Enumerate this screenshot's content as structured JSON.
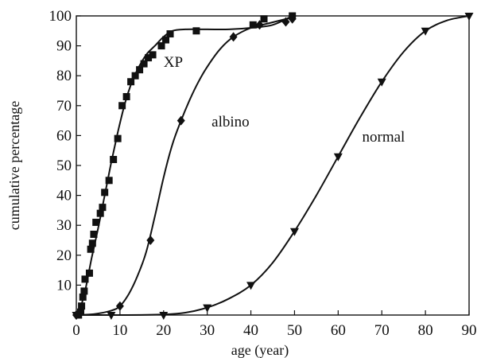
{
  "chart_data": {
    "type": "line",
    "xlabel": "age (year)",
    "ylabel": "cumulative percentage",
    "xlim": [
      0,
      90
    ],
    "ylim": [
      0,
      100
    ],
    "xticks": [
      0,
      10,
      20,
      30,
      40,
      50,
      60,
      70,
      80,
      90
    ],
    "yticks": [
      10,
      20,
      30,
      40,
      50,
      60,
      70,
      80,
      90,
      100
    ],
    "grid": false,
    "line_color": "#111111",
    "series": [
      {
        "name": "XP",
        "marker": "square",
        "points": [
          [
            0.5,
            0
          ],
          [
            1,
            1
          ],
          [
            1.2,
            3
          ],
          [
            1.5,
            6
          ],
          [
            1.8,
            8
          ],
          [
            2,
            12
          ],
          [
            3,
            14
          ],
          [
            3.3,
            22
          ],
          [
            3.7,
            24
          ],
          [
            4,
            27
          ],
          [
            4.5,
            31
          ],
          [
            5.5,
            34
          ],
          [
            6,
            36
          ],
          [
            6.5,
            41
          ],
          [
            7.5,
            45
          ],
          [
            8.5,
            52
          ],
          [
            9.5,
            59
          ],
          [
            10.5,
            70
          ],
          [
            11.5,
            73
          ],
          [
            12.5,
            78
          ],
          [
            13.5,
            80
          ],
          [
            14.5,
            82
          ],
          [
            15.5,
            84
          ],
          [
            16.5,
            86
          ],
          [
            17.5,
            87
          ],
          [
            19.5,
            90
          ],
          [
            20.5,
            92
          ],
          [
            21.5,
            94
          ],
          [
            27.5,
            95
          ],
          [
            40.5,
            97
          ],
          [
            43,
            99
          ],
          [
            49.5,
            100
          ]
        ],
        "curve": [
          [
            0.5,
            0
          ],
          [
            2,
            8
          ],
          [
            3.5,
            19
          ],
          [
            5,
            29
          ],
          [
            6.5,
            40
          ],
          [
            8,
            51
          ],
          [
            9.5,
            61
          ],
          [
            11,
            70
          ],
          [
            12.5,
            77
          ],
          [
            14,
            82
          ],
          [
            16,
            87
          ],
          [
            18,
            90
          ],
          [
            20,
            93
          ],
          [
            22,
            95
          ],
          [
            25,
            95.5
          ],
          [
            30,
            95.5
          ],
          [
            35,
            95.5
          ],
          [
            40,
            96
          ],
          [
            45,
            97
          ],
          [
            49.5,
            100
          ]
        ]
      },
      {
        "name": "albino",
        "marker": "diamond",
        "points": [
          [
            0,
            0
          ],
          [
            10,
            3
          ],
          [
            17,
            25
          ],
          [
            24,
            65
          ],
          [
            36,
            93
          ],
          [
            42,
            97
          ],
          [
            48,
            98
          ],
          [
            49.5,
            99
          ]
        ],
        "curve": [
          [
            0,
            0
          ],
          [
            4,
            0.3
          ],
          [
            8,
            1.5
          ],
          [
            10,
            3
          ],
          [
            12,
            7
          ],
          [
            14,
            13
          ],
          [
            16,
            21
          ],
          [
            18,
            33
          ],
          [
            20,
            46
          ],
          [
            22,
            57
          ],
          [
            24,
            65
          ],
          [
            26,
            72
          ],
          [
            28,
            78
          ],
          [
            30,
            83
          ],
          [
            33,
            89
          ],
          [
            36,
            93
          ],
          [
            40,
            96
          ],
          [
            44,
            97.5
          ],
          [
            49.5,
            99.5
          ]
        ]
      },
      {
        "name": "normal",
        "marker": "triangle-down",
        "points": [
          [
            0,
            0
          ],
          [
            8,
            0
          ],
          [
            20,
            0
          ],
          [
            30,
            2.5
          ],
          [
            40,
            10
          ],
          [
            50,
            28
          ],
          [
            60,
            53
          ],
          [
            70,
            78
          ],
          [
            80,
            95
          ],
          [
            90,
            100
          ]
        ],
        "curve": [
          [
            0,
            0
          ],
          [
            10,
            0
          ],
          [
            20,
            0.2
          ],
          [
            25,
            0.8
          ],
          [
            30,
            2.5
          ],
          [
            35,
            5.5
          ],
          [
            40,
            10
          ],
          [
            45,
            17.5
          ],
          [
            50,
            28
          ],
          [
            55,
            40
          ],
          [
            60,
            53
          ],
          [
            65,
            66
          ],
          [
            70,
            78
          ],
          [
            75,
            88
          ],
          [
            80,
            95
          ],
          [
            85,
            98.5
          ],
          [
            90,
            100
          ]
        ]
      }
    ]
  }
}
